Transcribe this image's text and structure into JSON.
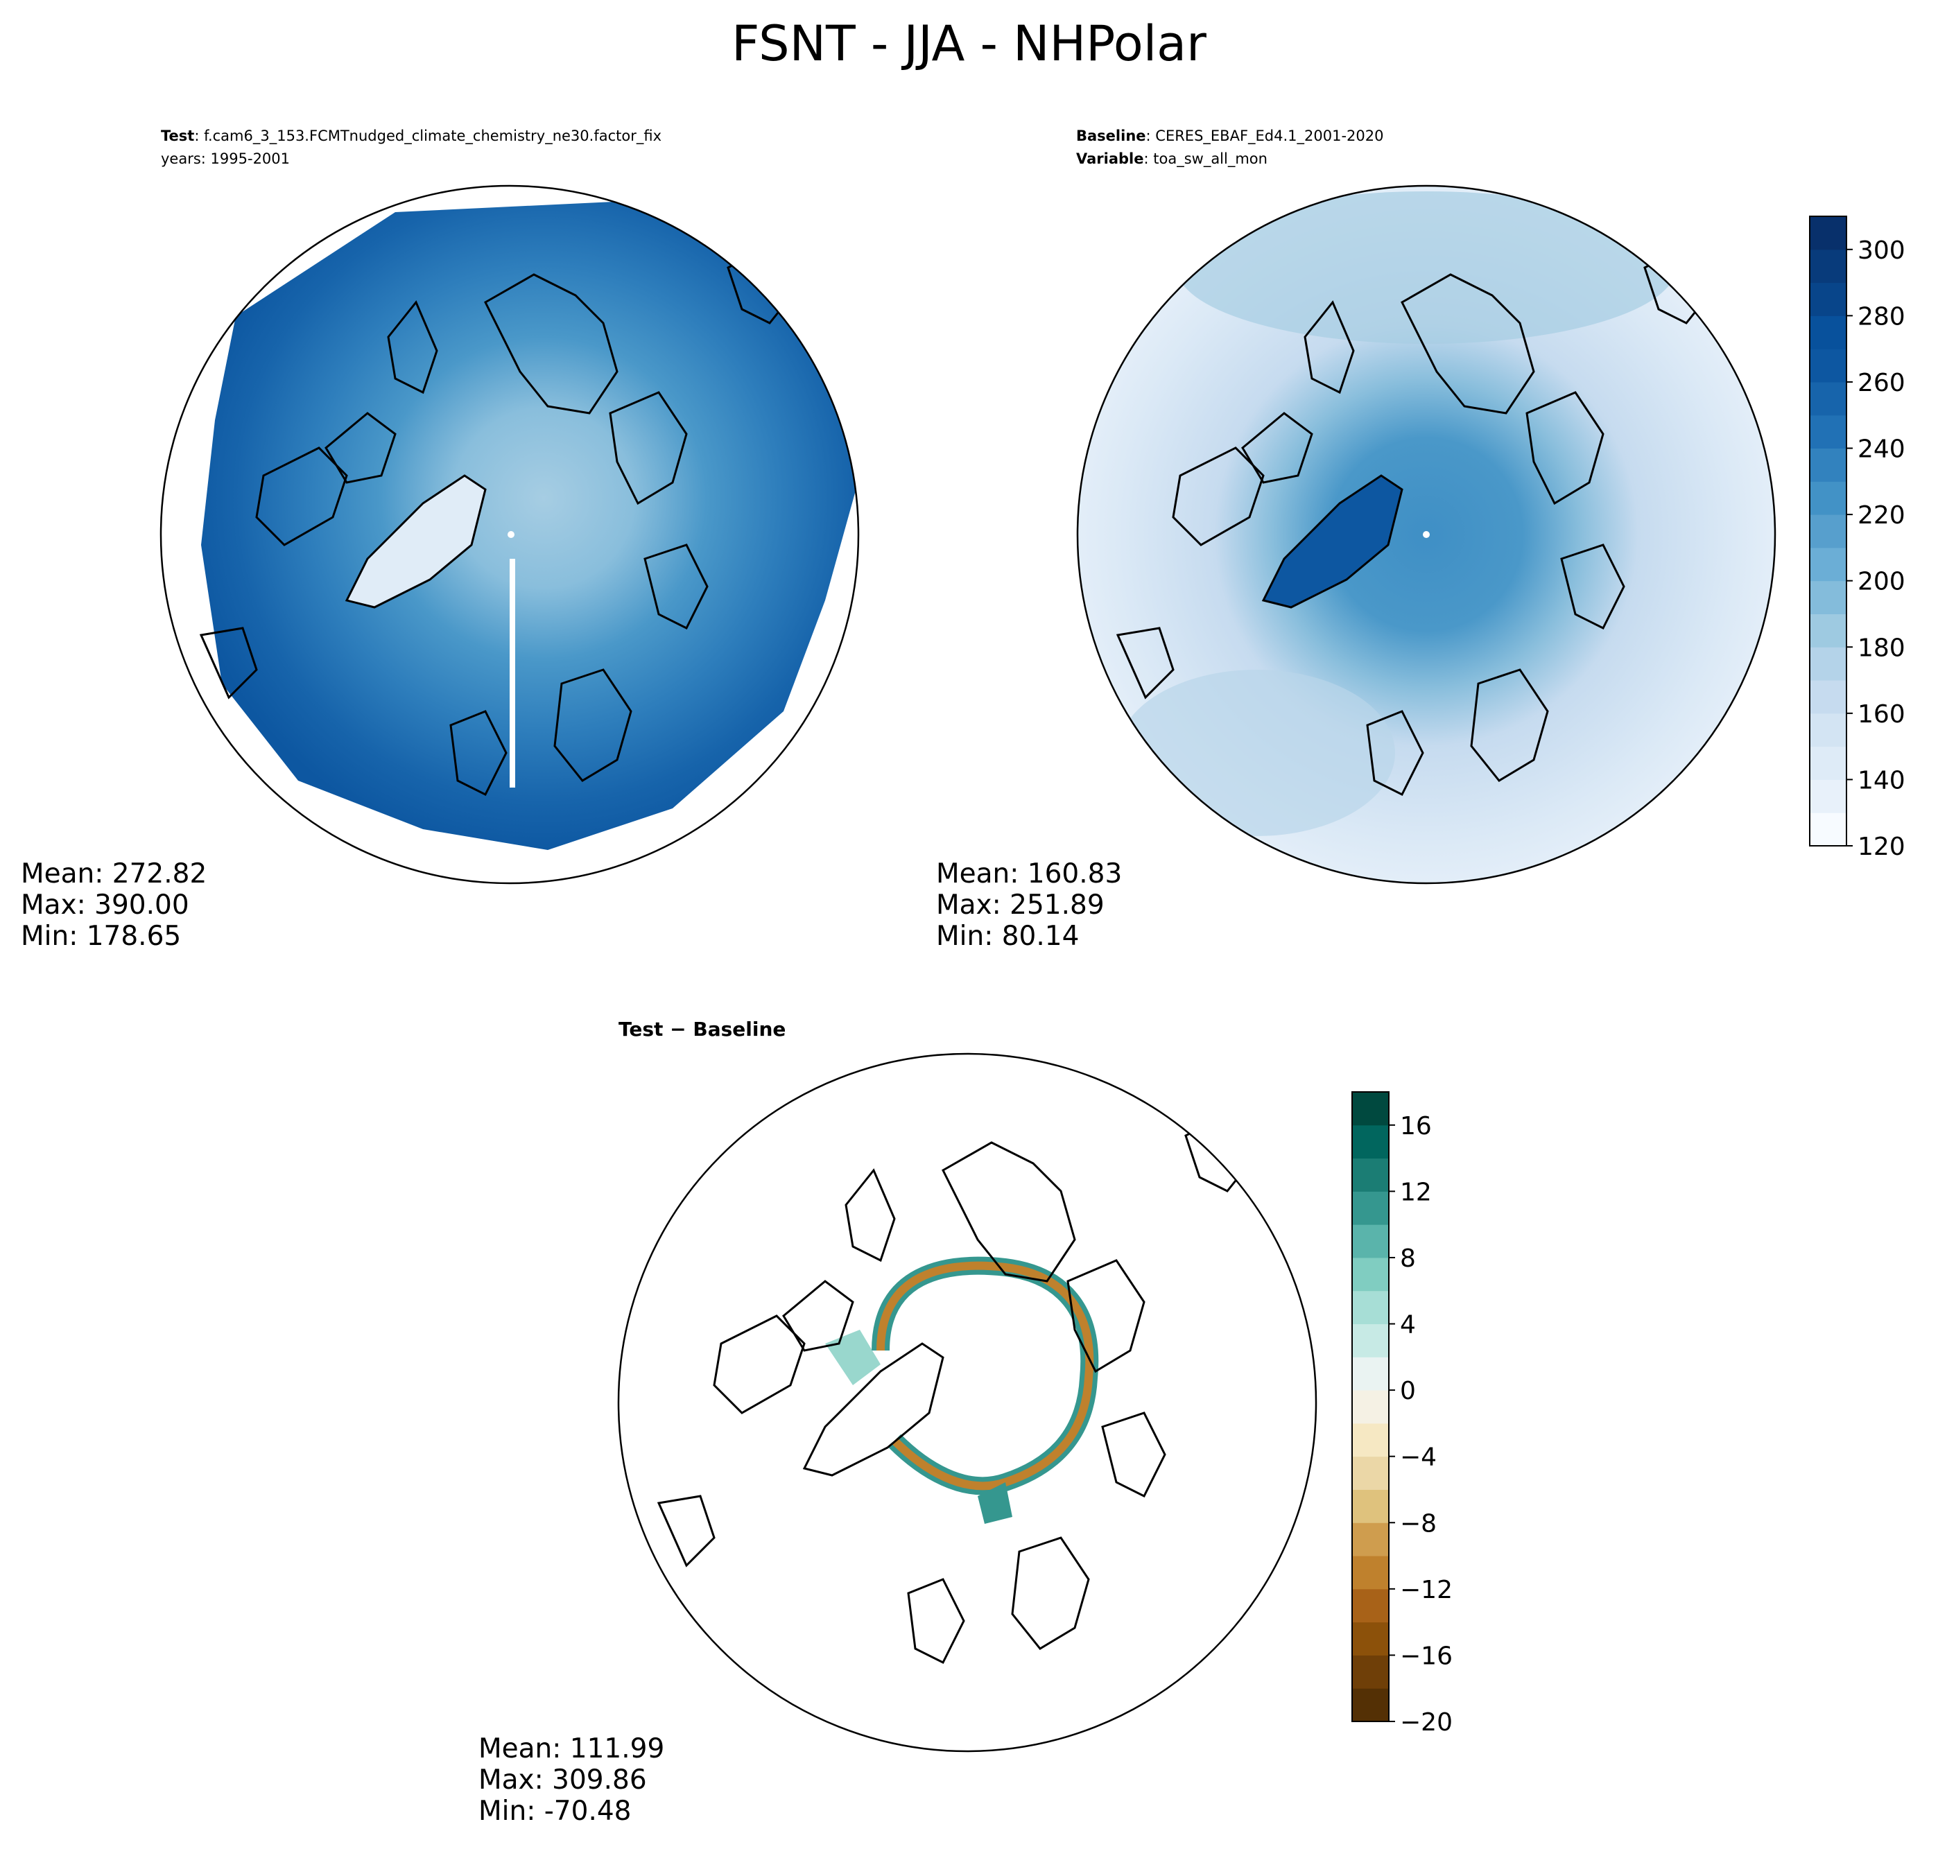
{
  "figure": {
    "title": "FSNT - JJA - NHPolar"
  },
  "panels": {
    "test": {
      "label_bold": "Test",
      "case": "f.cam6_3_153.FCMTnudged_climate_chemistry_ne30.factor_fix",
      "years": "years: 1995-2001",
      "stats": {
        "mean": "Mean: 272.82",
        "max": "Max: 390.00",
        "min": "Min: 178.65"
      }
    },
    "baseline": {
      "label_bold": "Baseline",
      "case": "CERES_EBAF_Ed4.1_2001-2020",
      "variable_bold": "Variable",
      "variable": "toa_sw_all_mon",
      "stats": {
        "mean": "Mean: 160.83",
        "max": "Max: 251.89",
        "min": "Min: 80.14"
      }
    },
    "difference": {
      "title": "Test − Baseline",
      "stats": {
        "mean": "Mean: 111.99",
        "max": "Max: 309.86",
        "min": "Min: -70.48"
      }
    }
  },
  "chart_data": [
    {
      "type": "heatmap",
      "panel": "test",
      "projection": "north-polar-stereographic",
      "colormap": "Blues",
      "colorbar": {
        "shared_with": "baseline"
      },
      "stats": {
        "mean": 272.82,
        "max": 390.0,
        "min": 178.65
      }
    },
    {
      "type": "heatmap",
      "panel": "baseline",
      "projection": "north-polar-stereographic",
      "colormap": "Blues",
      "colorbar": {
        "range": [
          120,
          310
        ],
        "levels": [
          120,
          130,
          140,
          150,
          160,
          170,
          180,
          190,
          200,
          210,
          220,
          230,
          240,
          250,
          260,
          270,
          280,
          290,
          300,
          310
        ],
        "ticks": [
          "120",
          "140",
          "160",
          "180",
          "200",
          "220",
          "240",
          "260",
          "280",
          "300"
        ]
      },
      "stats": {
        "mean": 160.83,
        "max": 251.89,
        "min": 80.14
      }
    },
    {
      "type": "heatmap",
      "panel": "difference",
      "projection": "north-polar-stereographic",
      "colormap": "BrBG",
      "colorbar": {
        "range": [
          -20,
          18
        ],
        "levels": [
          -20,
          -18,
          -16,
          -14,
          -12,
          -10,
          -8,
          -6,
          -4,
          -2,
          0,
          2,
          4,
          6,
          8,
          10,
          12,
          14,
          16,
          18
        ],
        "ticks": [
          "−20",
          "−16",
          "−12",
          "−8",
          "−4",
          "0",
          "4",
          "8",
          "12",
          "16"
        ]
      },
      "stats": {
        "mean": 111.99,
        "max": 309.86,
        "min": -70.48
      }
    }
  ]
}
